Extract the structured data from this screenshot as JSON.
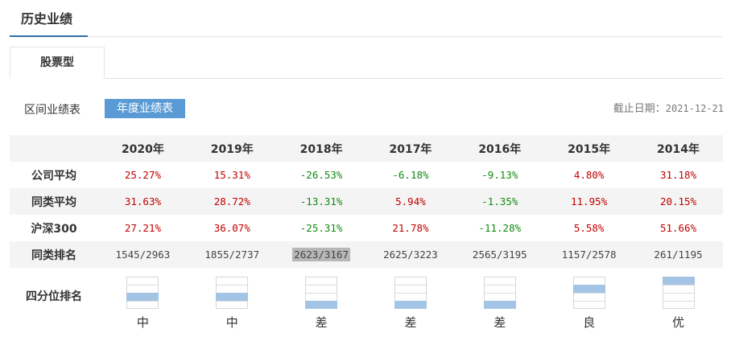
{
  "section_title": "历史业绩",
  "tab_label": "股票型",
  "mode": {
    "interval_label": "区间业绩表",
    "annual_label": "年度业绩表"
  },
  "cutoff": {
    "label": "截止日期：",
    "date": "2021-12-21"
  },
  "table": {
    "years": [
      "2020年",
      "2019年",
      "2018年",
      "2017年",
      "2016年",
      "2015年",
      "2014年"
    ],
    "rows": [
      {
        "label": "公司平均",
        "values": [
          "25.27%",
          "15.31%",
          "-26.53%",
          "-6.18%",
          "-9.13%",
          "4.80%",
          "31.18%"
        ],
        "signs": [
          "pos",
          "pos",
          "neg",
          "neg",
          "neg",
          "pos",
          "pos"
        ]
      },
      {
        "label": "同类平均",
        "values": [
          "31.63%",
          "28.72%",
          "-13.31%",
          "5.94%",
          "-1.35%",
          "11.95%",
          "20.15%"
        ],
        "signs": [
          "pos",
          "pos",
          "neg",
          "pos",
          "neg",
          "pos",
          "pos"
        ]
      },
      {
        "label": "沪深300",
        "values": [
          "27.21%",
          "36.07%",
          "-25.31%",
          "21.78%",
          "-11.28%",
          "5.58%",
          "51.66%"
        ],
        "signs": [
          "pos",
          "pos",
          "neg",
          "pos",
          "neg",
          "pos",
          "pos"
        ]
      },
      {
        "label": "同类排名",
        "values": [
          "1545/2963",
          "1855/2737",
          "2623/3167",
          "2625/3223",
          "2565/3195",
          "1157/2578",
          "261/1195"
        ],
        "signs": [
          "plain",
          "plain",
          "plain",
          "plain",
          "plain",
          "plain",
          "plain"
        ]
      }
    ],
    "highlighted": {
      "row": 3,
      "col": 2
    }
  },
  "quartile": {
    "label": "四分位排名",
    "items": [
      {
        "rating": "中",
        "quartile": 3
      },
      {
        "rating": "中",
        "quartile": 3
      },
      {
        "rating": "差",
        "quartile": 4
      },
      {
        "rating": "差",
        "quartile": 4
      },
      {
        "rating": "差",
        "quartile": 4
      },
      {
        "rating": "良",
        "quartile": 2
      },
      {
        "rating": "优",
        "quartile": 1
      }
    ]
  },
  "colors": {
    "accent": "#5b9bd5",
    "positive": "#c00000",
    "negative": "#118a11",
    "quartile_fill": "#a3c4e4"
  }
}
